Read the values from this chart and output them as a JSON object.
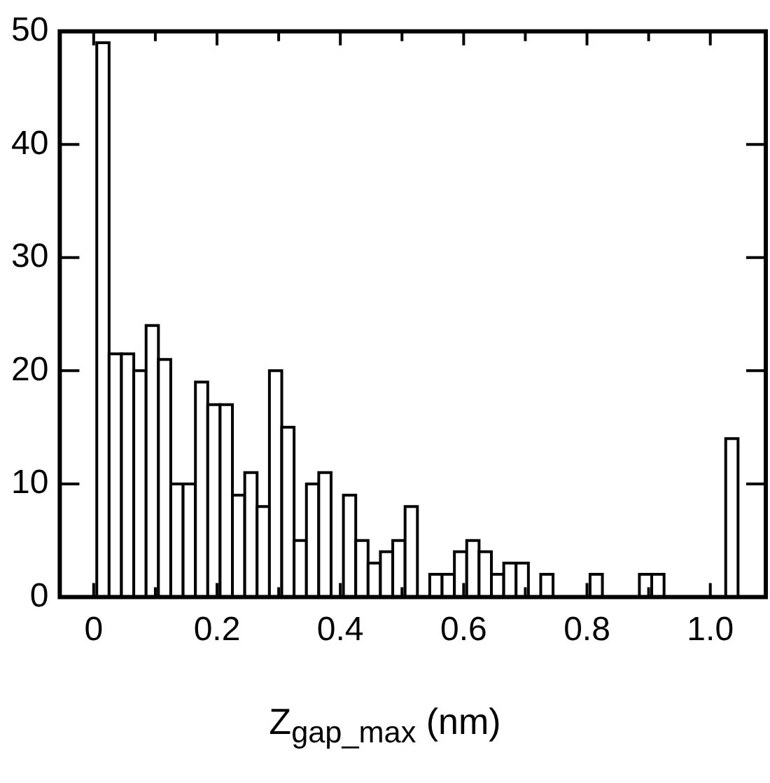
{
  "chart_data": {
    "type": "histogram",
    "xlabel": "Z$_{gap_max}$ (nm)",
    "bins": [
      0.005,
      0.025,
      0.045,
      0.065,
      0.085,
      0.105,
      0.125,
      0.145,
      0.165,
      0.185,
      0.205,
      0.225,
      0.245,
      0.265,
      0.285,
      0.305,
      0.325,
      0.345,
      0.365,
      0.385,
      0.405,
      0.425,
      0.445,
      0.465,
      0.485,
      0.505,
      0.525,
      0.545,
      0.565,
      0.585,
      0.605,
      0.625,
      0.645,
      0.665,
      0.685,
      0.705,
      0.725,
      0.745,
      0.765,
      0.785,
      0.805,
      0.825,
      0.845,
      0.865,
      0.885,
      0.905,
      0.925,
      0.945,
      0.965,
      0.985,
      1.005,
      1.025,
      1.045
    ],
    "values": [
      49,
      21.5,
      21.5,
      20,
      24,
      21,
      10,
      10,
      19,
      17,
      17,
      9,
      11,
      8,
      20,
      15,
      5,
      10,
      11,
      0,
      9,
      5,
      3,
      4,
      5,
      8,
      0,
      2,
      2,
      4,
      5,
      4,
      2,
      3,
      3,
      0,
      2,
      0,
      0,
      0,
      2,
      0,
      0,
      0,
      2,
      2,
      0,
      0,
      0,
      0,
      0,
      14
    ],
    "color": "#ffffff",
    "xlim": [
      -0.055,
      1.09
    ],
    "xticks": [
      0,
      {
        "value": 0.1,
        "label": null
      },
      0.2,
      {
        "value": 0.3,
        "label": null
      },
      0.4,
      {
        "value": 0.5,
        "label": null
      },
      0.6,
      {
        "value": 0.7,
        "label": null
      },
      0.8,
      {
        "value": 0.9,
        "label": null
      },
      {
        "value": 1,
        "label": "1.0"
      }
    ],
    "ylim": [
      0,
      50
    ],
    "yticks": [
      0,
      10,
      20,
      30,
      40,
      50
    ]
  }
}
